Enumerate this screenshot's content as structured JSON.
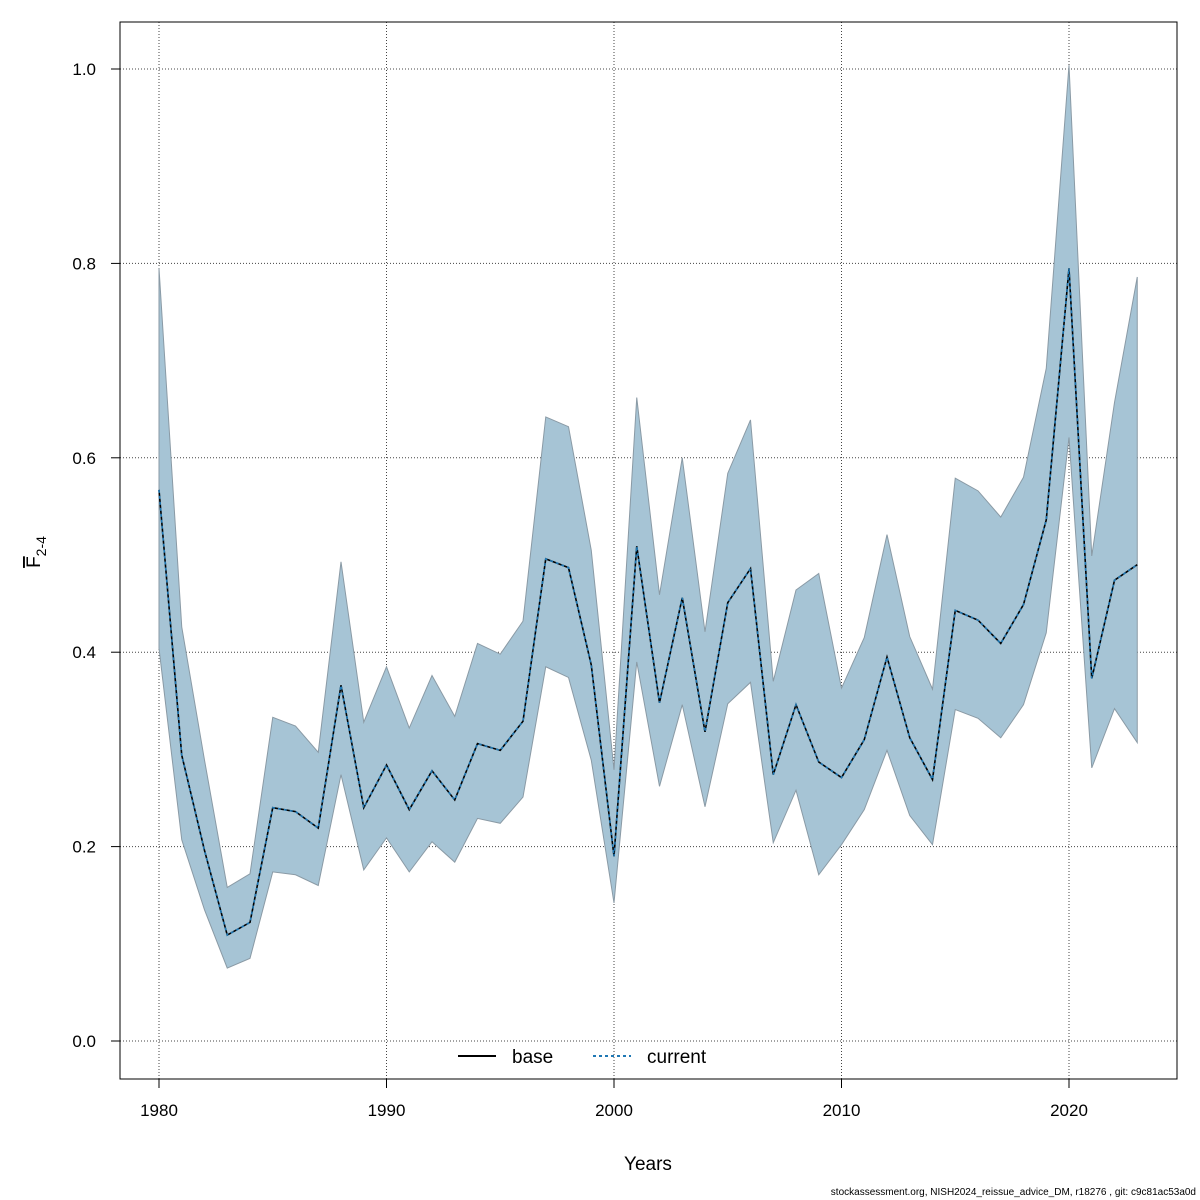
{
  "chart_data": {
    "type": "line",
    "xlabel": "Years",
    "ylabel": {
      "base": "F",
      "subscript": "2-4"
    },
    "xlim": [
      1978.2,
      2024.6
    ],
    "ylim": [
      -0.04,
      1.045
    ],
    "x_ticks": [
      1980,
      1990,
      2000,
      2010,
      2020
    ],
    "y_ticks": [
      "0.0",
      "0.2",
      "0.4",
      "0.6",
      "0.8",
      "1.0"
    ],
    "grid": true,
    "legend_position": "bottom",
    "x": [
      1980,
      1981,
      1982,
      1983,
      1984,
      1985,
      1986,
      1987,
      1988,
      1989,
      1990,
      1991,
      1992,
      1993,
      1994,
      1995,
      1996,
      1997,
      1998,
      1999,
      2000,
      2001,
      2002,
      2003,
      2004,
      2005,
      2006,
      2007,
      2008,
      2009,
      2010,
      2011,
      2012,
      2013,
      2014,
      2015,
      2016,
      2017,
      2018,
      2019,
      2020,
      2021,
      2022,
      2023
    ],
    "series": [
      {
        "name": "base",
        "style": "solid",
        "color": "#000000",
        "values": [
          0.567,
          0.294,
          0.196,
          0.109,
          0.122,
          0.24,
          0.236,
          0.219,
          0.366,
          0.24,
          0.284,
          0.238,
          0.278,
          0.248,
          0.306,
          0.299,
          0.329,
          0.496,
          0.487,
          0.387,
          0.19,
          0.509,
          0.348,
          0.456,
          0.318,
          0.451,
          0.486,
          0.274,
          0.346,
          0.287,
          0.271,
          0.31,
          0.395,
          0.312,
          0.269,
          0.443,
          0.433,
          0.409,
          0.449,
          0.536,
          0.795,
          0.373,
          0.474,
          0.49
        ]
      },
      {
        "name": "current",
        "style": "dotted",
        "color": "#1f78b4",
        "values": [
          0.567,
          0.294,
          0.196,
          0.109,
          0.122,
          0.24,
          0.236,
          0.219,
          0.366,
          0.24,
          0.284,
          0.238,
          0.278,
          0.248,
          0.306,
          0.299,
          0.329,
          0.496,
          0.487,
          0.387,
          0.19,
          0.509,
          0.348,
          0.456,
          0.318,
          0.451,
          0.486,
          0.274,
          0.346,
          0.287,
          0.271,
          0.31,
          0.395,
          0.312,
          0.269,
          0.443,
          0.433,
          0.409,
          0.449,
          0.536,
          0.795,
          0.373,
          0.474,
          0.49
        ]
      }
    ],
    "confidence_band": {
      "color": "#a6c4d5",
      "upper": [
        0.795,
        0.426,
        0.289,
        0.158,
        0.172,
        0.333,
        0.324,
        0.297,
        0.493,
        0.328,
        0.385,
        0.322,
        0.376,
        0.334,
        0.409,
        0.398,
        0.432,
        0.642,
        0.632,
        0.505,
        0.279,
        0.662,
        0.459,
        0.6,
        0.421,
        0.584,
        0.639,
        0.37,
        0.464,
        0.481,
        0.363,
        0.415,
        0.521,
        0.416,
        0.362,
        0.579,
        0.566,
        0.539,
        0.58,
        0.692,
        1.004,
        0.499,
        0.657,
        0.786
      ],
      "lower": [
        0.404,
        0.207,
        0.135,
        0.075,
        0.085,
        0.174,
        0.171,
        0.16,
        0.274,
        0.176,
        0.209,
        0.174,
        0.205,
        0.184,
        0.229,
        0.224,
        0.251,
        0.385,
        0.374,
        0.289,
        0.142,
        0.39,
        0.262,
        0.346,
        0.241,
        0.347,
        0.369,
        0.204,
        0.258,
        0.171,
        0.202,
        0.238,
        0.299,
        0.232,
        0.202,
        0.341,
        0.332,
        0.312,
        0.346,
        0.42,
        0.621,
        0.281,
        0.342,
        0.307
      ]
    }
  },
  "footer": "stockassessment.org, NISH2024_reissue_advice_DM, r18276 , git: c9c81ac53a0d"
}
